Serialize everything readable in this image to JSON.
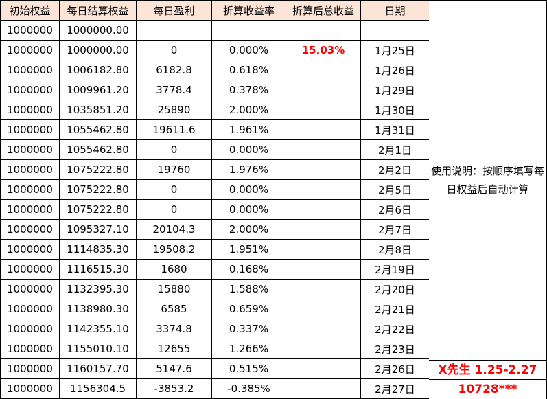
{
  "table": {
    "headers": [
      "初始权益",
      "每日结算权益",
      "每日盈利",
      "折算收益率",
      "折算后总收益",
      "日期"
    ],
    "rows": [
      [
        "1000000",
        "1000000.00",
        "",
        "",
        "",
        ""
      ],
      [
        "1000000",
        "1000000.00",
        "0",
        "0.000%",
        "15.03%",
        "1月25日"
      ],
      [
        "1000000",
        "1006182.80",
        "6182.8",
        "0.618%",
        "",
        "1月26日"
      ],
      [
        "1000000",
        "1009961.20",
        "3778.4",
        "0.378%",
        "",
        "1月29日"
      ],
      [
        "1000000",
        "1035851.20",
        "25890",
        "2.000%",
        "",
        "1月30日"
      ],
      [
        "1000000",
        "1055462.80",
        "19611.6",
        "1.961%",
        "",
        "1月31日"
      ],
      [
        "1000000",
        "1055462.80",
        "0",
        "0.000%",
        "",
        "2月1日"
      ],
      [
        "1000000",
        "1075222.80",
        "19760",
        "1.976%",
        "",
        "2月2日"
      ],
      [
        "1000000",
        "1075222.80",
        "0",
        "0.000%",
        "",
        "2月5日"
      ],
      [
        "1000000",
        "1075222.80",
        "0",
        "0.000%",
        "",
        "2月6日"
      ],
      [
        "1000000",
        "1095327.10",
        "20104.3",
        "2.000%",
        "",
        "2月7日"
      ],
      [
        "1000000",
        "1114835.30",
        "19508.2",
        "1.951%",
        "",
        "2月8日"
      ],
      [
        "1000000",
        "1116515.30",
        "1680",
        "0.168%",
        "",
        "2月19日"
      ],
      [
        "1000000",
        "1132395.30",
        "15880",
        "1.588%",
        "",
        "2月20日"
      ],
      [
        "1000000",
        "1138980.30",
        "6585",
        "0.659%",
        "",
        "2月21日"
      ],
      [
        "1000000",
        "1142355.10",
        "3374.8",
        "0.337%",
        "",
        "2月22日"
      ],
      [
        "1000000",
        "1155010.10",
        "12655",
        "1.266%",
        "",
        "2月23日"
      ],
      [
        "1000000",
        "1160157.70",
        "5147.6",
        "0.515%",
        "",
        "2月26日"
      ],
      [
        "1000000",
        "1156304.5",
        "-3853.2",
        "-0.385%",
        "",
        "2月27日"
      ]
    ],
    "highlight_cell": {
      "row": 1,
      "col": 4,
      "value": "15.03%"
    }
  },
  "sidebar": {
    "usage_note": "使用说明：按顺序填写每日权益后自动计算",
    "trader_label": "X先生 1.25-2.27",
    "account_number": "10728***"
  },
  "colors": {
    "header_bg": "#FCE4D6",
    "accent_red": "#FF0000",
    "border": "#000000"
  }
}
